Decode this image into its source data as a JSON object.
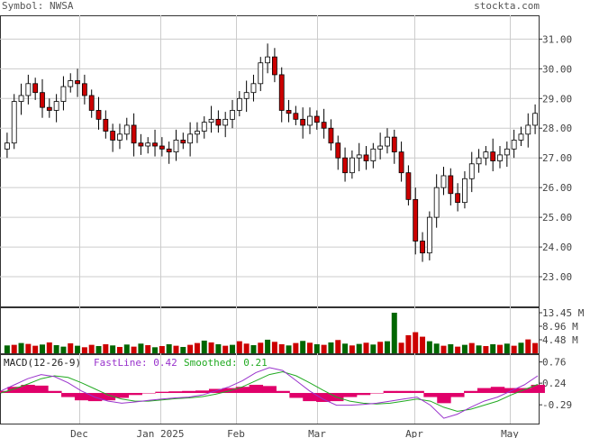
{
  "header": {
    "symbol": "Symbol: NWSA",
    "site": "stockta.com"
  },
  "macd_legend": {
    "title": "MACD(12-26-9)",
    "fast": "FastLine: 0.42",
    "smoothed": "Smoothed: 0.21"
  },
  "colors": {
    "up_candle": "#ffffff",
    "down_candle": "#cc0000",
    "volume_up": "#006600",
    "volume_down": "#cc0000",
    "macd_hist": "#e0006a",
    "fast_line": "#9933cc",
    "smooth_line": "#22aa22",
    "grid": "#cccccc"
  },
  "chart_data": [
    {
      "type": "candlestick",
      "symbol": "NWSA",
      "x_tick_labels": [
        "Dec",
        "Jan 2025",
        "Feb",
        "Mar",
        "Apr",
        "May"
      ],
      "y_tick_labels": [
        "31.00",
        "30.00",
        "29.00",
        "28.00",
        "27.00",
        "26.00",
        "25.00",
        "24.00",
        "23.00"
      ],
      "ylim": [
        22.0,
        31.8
      ],
      "grid": true,
      "close": [
        27.5,
        28.9,
        29.1,
        29.5,
        29.2,
        28.7,
        28.6,
        28.9,
        29.4,
        29.6,
        29.5,
        29.1,
        28.6,
        28.3,
        27.9,
        27.6,
        27.8,
        28.1,
        27.5,
        27.4,
        27.5,
        27.4,
        27.3,
        27.2,
        27.6,
        27.5,
        27.8,
        27.9,
        28.2,
        28.3,
        28.1,
        28.3,
        28.6,
        29.0,
        29.2,
        29.5,
        30.2,
        30.4,
        29.8,
        28.6,
        28.5,
        28.3,
        28.1,
        28.4,
        28.2,
        28.0,
        27.5,
        27.0,
        26.5,
        27.0,
        27.1,
        26.9,
        27.3,
        27.4,
        27.7,
        27.2,
        26.5,
        25.6,
        24.2,
        23.8,
        25.0,
        26.0,
        26.4,
        25.8,
        25.5,
        26.3,
        26.8,
        27.0,
        27.2,
        26.9,
        27.1,
        27.3,
        27.6,
        27.8,
        28.1,
        28.5
      ],
      "volume_range_labels": [
        "13.45 M",
        "8.96 M",
        "4.48 M"
      ],
      "volume_max": 13.45,
      "volume": [
        2.6,
        2.8,
        3.4,
        3.1,
        2.5,
        2.9,
        3.6,
        2.7,
        2.2,
        3.3,
        2.5,
        2.0,
        2.8,
        2.4,
        3.0,
        2.6,
        2.1,
        2.9,
        2.2,
        3.2,
        2.7,
        2.0,
        2.4,
        3.0,
        2.5,
        2.1,
        2.8,
        3.4,
        4.2,
        3.6,
        3.0,
        2.5,
        2.8,
        4.0,
        3.2,
        2.7,
        3.5,
        4.5,
        3.8,
        3.0,
        2.6,
        3.4,
        4.1,
        3.5,
        3.0,
        2.8,
        3.6,
        4.4,
        3.2,
        2.6,
        3.1,
        3.5,
        2.9,
        3.8,
        4.0,
        13.45,
        3.5,
        6.0,
        7.0,
        5.5,
        4.0,
        3.2,
        2.5,
        3.0,
        2.2,
        2.8,
        3.4,
        2.6,
        2.4,
        3.0,
        2.8,
        3.2,
        2.5,
        3.5,
        4.6,
        3.4
      ],
      "volume_down": [
        false,
        true,
        false,
        true,
        true,
        false,
        true,
        false,
        false,
        true,
        false,
        true,
        true,
        false,
        true,
        false,
        true,
        false,
        true,
        false,
        true,
        false,
        true,
        false,
        true,
        false,
        true,
        true,
        false,
        true,
        false,
        true,
        false,
        true,
        true,
        false,
        true,
        false,
        true,
        true,
        false,
        true,
        false,
        true,
        false,
        true,
        false,
        true,
        false,
        true,
        false,
        true,
        false,
        true,
        false,
        false,
        true,
        true,
        true,
        true,
        false,
        false,
        true,
        false,
        true,
        false,
        true,
        false,
        true,
        false,
        true,
        false,
        true,
        false,
        true,
        true
      ]
    },
    {
      "type": "macd",
      "y_tick_labels": [
        "0.76",
        "0.24",
        "-0.29"
      ],
      "ylim": [
        -0.75,
        0.95
      ],
      "fast": [
        0.05,
        0.2,
        0.35,
        0.45,
        0.4,
        0.25,
        0.05,
        -0.1,
        -0.2,
        -0.25,
        -0.22,
        -0.18,
        -0.15,
        -0.12,
        -0.1,
        -0.05,
        0.05,
        0.15,
        0.3,
        0.5,
        0.62,
        0.55,
        0.3,
        0.05,
        -0.15,
        -0.3,
        -0.3,
        -0.28,
        -0.25,
        -0.2,
        -0.15,
        -0.1,
        -0.3,
        -0.62,
        -0.52,
        -0.35,
        -0.2,
        -0.1,
        0.05,
        0.2,
        0.42
      ],
      "smoothed": [
        0.0,
        0.1,
        0.22,
        0.35,
        0.42,
        0.38,
        0.25,
        0.1,
        -0.05,
        -0.15,
        -0.2,
        -0.2,
        -0.17,
        -0.14,
        -0.12,
        -0.09,
        -0.03,
        0.05,
        0.15,
        0.3,
        0.45,
        0.52,
        0.42,
        0.25,
        0.07,
        -0.1,
        -0.2,
        -0.25,
        -0.27,
        -0.25,
        -0.2,
        -0.15,
        -0.2,
        -0.35,
        -0.45,
        -0.4,
        -0.3,
        -0.2,
        -0.05,
        0.08,
        0.21
      ],
      "histogram": [
        0.05,
        0.15,
        0.2,
        0.18,
        0.05,
        -0.1,
        -0.18,
        -0.2,
        -0.18,
        -0.12,
        -0.05,
        0.0,
        0.03,
        0.04,
        0.05,
        0.06,
        0.1,
        0.12,
        0.15,
        0.2,
        0.17,
        0.05,
        -0.12,
        -0.2,
        -0.22,
        -0.2,
        -0.1,
        -0.05,
        0.0,
        0.05,
        0.05,
        0.05,
        -0.1,
        -0.25,
        -0.1,
        0.05,
        0.12,
        0.15,
        0.12,
        0.12,
        0.2
      ]
    }
  ]
}
